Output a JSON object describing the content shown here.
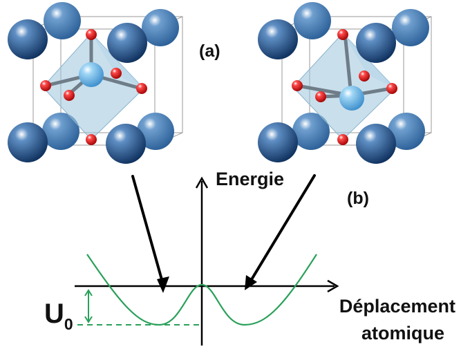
{
  "labels": {
    "panel_a": "(a)",
    "panel_b": "(b)",
    "y_axis": "Energie",
    "x_axis_line1": "Déplacement",
    "x_axis_line2": "atomique",
    "barrier_symbol": "U",
    "barrier_subscript": "0"
  },
  "colors": {
    "a_site_atom": "#1f4f86",
    "b_site_atom": "#62b3e8",
    "oxygen_atom": "#d81e1e",
    "octahedron": "#9cc4dc",
    "curve": "#2aa05a",
    "arrow": "#000000",
    "axis": "#000000"
  },
  "structures": [
    {
      "name": "left-structure",
      "b_site_position": "centered"
    },
    {
      "name": "right-structure",
      "b_site_position": "displaced"
    }
  ]
}
